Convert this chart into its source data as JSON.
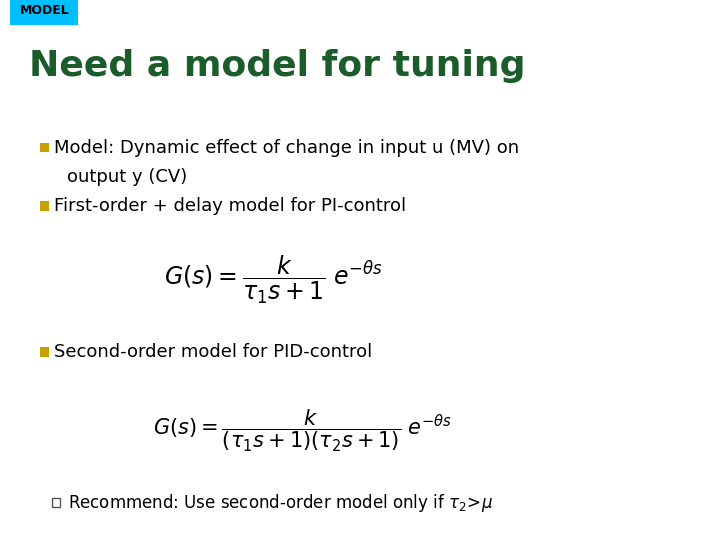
{
  "bg_color": "#ffffff",
  "tag_bg": "#00bfff",
  "tag_text": "MODEL",
  "tag_text_color": "#000000",
  "title": "Need a model for tuning",
  "title_color": "#1a5c2a",
  "bullet_color": "#c8a000",
  "sub_bullet_color": "#555555",
  "text_color": "#000000",
  "font_size_title": 26,
  "font_size_bullet": 13,
  "font_size_eq1": 17,
  "font_size_eq2": 15,
  "font_size_sub": 12,
  "bullet1_line1": "Model: Dynamic effect of change in input u (MV) on",
  "bullet1_line2": "output y (CV)",
  "bullet2": "First-order + delay model for PI-control",
  "eq1": "$G(s) = \\dfrac{k}{\\tau_1 s+1}\\; e^{-\\theta s}$",
  "bullet3": "Second-order model for PID-control",
  "eq2": "$G(s) = \\dfrac{k}{(\\tau_1 s+1)(\\tau_2 s+1)}\\; e^{-\\theta s}$",
  "sub_bullet": "Recommend: Use second-order model only if $\\tau_2\\!>\\!\\mu$"
}
